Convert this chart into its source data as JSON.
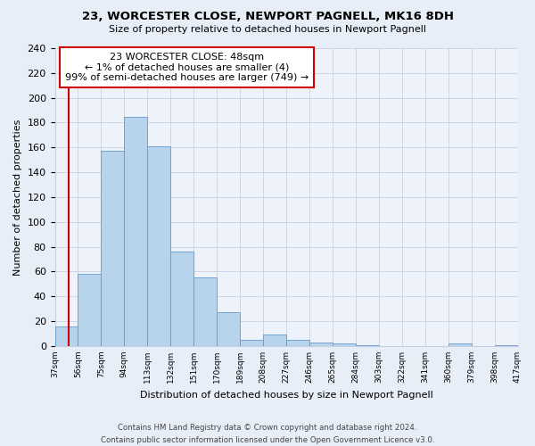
{
  "title": "23, WORCESTER CLOSE, NEWPORT PAGNELL, MK16 8DH",
  "subtitle": "Size of property relative to detached houses in Newport Pagnell",
  "xlabel": "Distribution of detached houses by size in Newport Pagnell",
  "ylabel": "Number of detached properties",
  "bar_values": [
    16,
    58,
    157,
    185,
    161,
    76,
    55,
    27,
    5,
    9,
    5,
    3,
    2,
    1,
    0,
    0,
    0,
    2,
    0,
    1
  ],
  "bar_labels": [
    "37sqm",
    "56sqm",
    "75sqm",
    "94sqm",
    "113sqm",
    "132sqm",
    "151sqm",
    "170sqm",
    "189sqm",
    "208sqm",
    "227sqm",
    "246sqm",
    "265sqm",
    "284sqm",
    "303sqm",
    "322sqm",
    "341sqm",
    "360sqm",
    "379sqm",
    "398sqm",
    "417sqm"
  ],
  "bar_color": "#b8d4ed",
  "bar_edge_color": "#6699cc",
  "annotation_box_text": "23 WORCESTER CLOSE: 48sqm\n← 1% of detached houses are smaller (4)\n99% of semi-detached houses are larger (749) →",
  "vline_color": "#cc0000",
  "ylim": [
    0,
    240
  ],
  "yticks": [
    0,
    20,
    40,
    60,
    80,
    100,
    120,
    140,
    160,
    180,
    200,
    220,
    240
  ],
  "footer_line1": "Contains HM Land Registry data © Crown copyright and database right 2024.",
  "footer_line2": "Contains public sector information licensed under the Open Government Licence v3.0.",
  "background_color": "#e8eef8",
  "plot_bg_color": "#eef2fb"
}
